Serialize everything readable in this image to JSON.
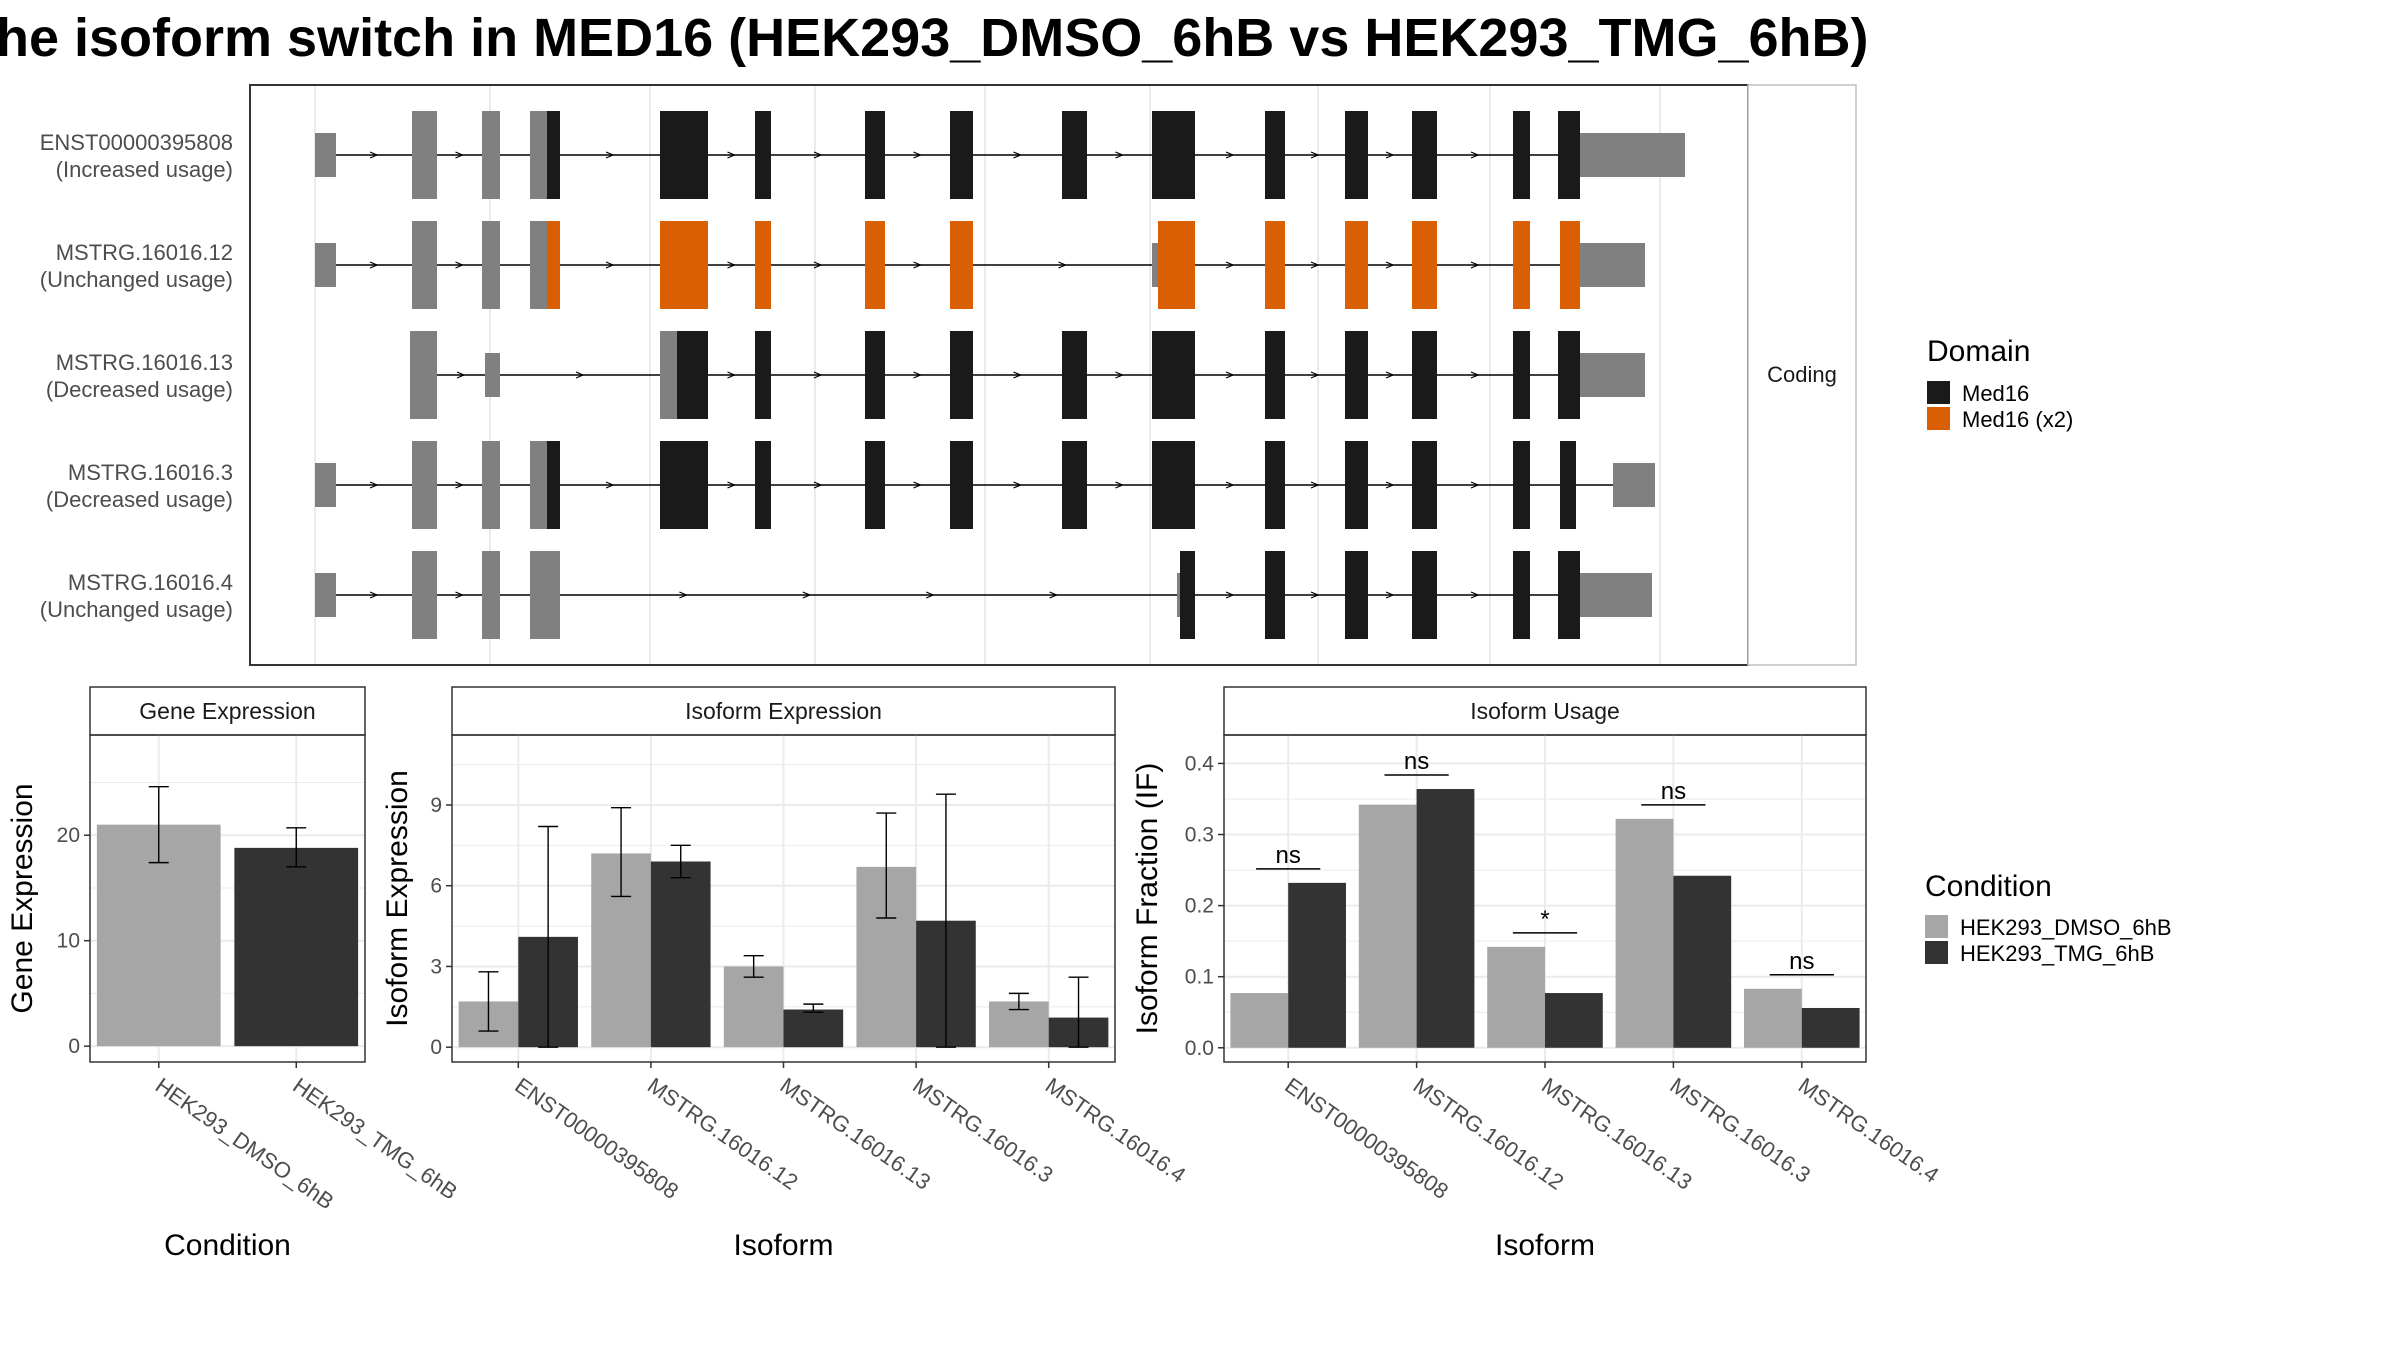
{
  "title": "he isoform switch in MED16 (HEK293_DMSO_6hB vs HEK293_TMG_6hB)",
  "colors": {
    "domain_med16": "#1a1a1a",
    "domain_med16_x2": "#d95f02",
    "noncoding": "#808080",
    "cond_dmso": "#a6a6a6",
    "cond_tmg": "#333333",
    "grid": "#ebebeb",
    "strip_bg": "#ffffff"
  },
  "chart_data": [
    {
      "type": "gene-structure",
      "panel_strip": "Coding",
      "domain_legend": {
        "title": "Domain",
        "items": [
          {
            "label": "Med16",
            "color_key": "domain_med16"
          },
          {
            "label": "Med16 (x2)",
            "color_key": "domain_med16_x2"
          }
        ]
      },
      "transcripts": [
        {
          "id": "ENST00000395808",
          "status": "(Increased usage)"
        },
        {
          "id": "MSTRG.16016.12",
          "status": "(Unchanged usage)"
        },
        {
          "id": "MSTRG.16016.13",
          "status": "(Decreased usage)"
        },
        {
          "id": "MSTRG.16016.3",
          "status": "(Decreased usage)"
        },
        {
          "id": "MSTRG.16016.4",
          "status": "(Unchanged usage)"
        }
      ]
    },
    {
      "type": "bar",
      "strip": "Gene Expression",
      "xlabel": "Condition",
      "ylabel": "Gene Expression",
      "categories": [
        "HEK293_DMSO_6hB",
        "HEK293_TMG_6hB"
      ],
      "values": [
        21.0,
        18.8
      ],
      "errors": [
        [
          17.4,
          24.6
        ],
        [
          17.0,
          20.7
        ]
      ],
      "ylim": [
        -1.5,
        29.5
      ],
      "yticks": [
        0,
        10,
        20
      ]
    },
    {
      "type": "bar",
      "strip": "Isoform Expression",
      "xlabel": "Isoform",
      "ylabel": "Isoform Expression",
      "categories": [
        "ENST00000395808",
        "MSTRG.16016.12",
        "MSTRG.16016.13",
        "MSTRG.16016.3",
        "MSTRG.16016.4"
      ],
      "series": [
        {
          "name": "HEK293_DMSO_6hB",
          "values": [
            1.7,
            7.2,
            3.0,
            6.7,
            1.7
          ],
          "errors": [
            [
              0.6,
              2.8
            ],
            [
              5.6,
              8.9
            ],
            [
              2.6,
              3.4
            ],
            [
              4.8,
              8.7
            ],
            [
              1.4,
              2.0
            ]
          ]
        },
        {
          "name": "HEK293_TMG_6hB",
          "values": [
            4.1,
            6.9,
            1.4,
            4.7,
            1.1
          ],
          "errors": [
            [
              0.0,
              8.2
            ],
            [
              6.3,
              7.5
            ],
            [
              1.3,
              1.6
            ],
            [
              0.0,
              9.4
            ],
            [
              0.0,
              2.6
            ]
          ]
        }
      ],
      "ylim": [
        -0.55,
        11.6
      ],
      "yticks": [
        0,
        3,
        6,
        9
      ]
    },
    {
      "type": "bar",
      "strip": "Isoform Usage",
      "xlabel": "Isoform",
      "ylabel": "Isoform Fraction (IF)",
      "categories": [
        "ENST00000395808",
        "MSTRG.16016.12",
        "MSTRG.16016.13",
        "MSTRG.16016.3",
        "MSTRG.16016.4"
      ],
      "series": [
        {
          "name": "HEK293_DMSO_6hB",
          "values": [
            0.077,
            0.342,
            0.142,
            0.322,
            0.083
          ]
        },
        {
          "name": "HEK293_TMG_6hB",
          "values": [
            0.232,
            0.364,
            0.077,
            0.242,
            0.056
          ]
        }
      ],
      "significance": [
        "ns",
        "ns",
        "*",
        "ns",
        "ns"
      ],
      "ylim": [
        -0.02,
        0.44
      ],
      "yticks": [
        0.0,
        0.1,
        0.2,
        0.3,
        0.4
      ]
    }
  ],
  "condition_legend": {
    "title": "Condition",
    "items": [
      {
        "label": "HEK293_DMSO_6hB",
        "color_key": "cond_dmso"
      },
      {
        "label": "HEK293_TMG_6hB",
        "color_key": "cond_tmg"
      }
    ]
  }
}
